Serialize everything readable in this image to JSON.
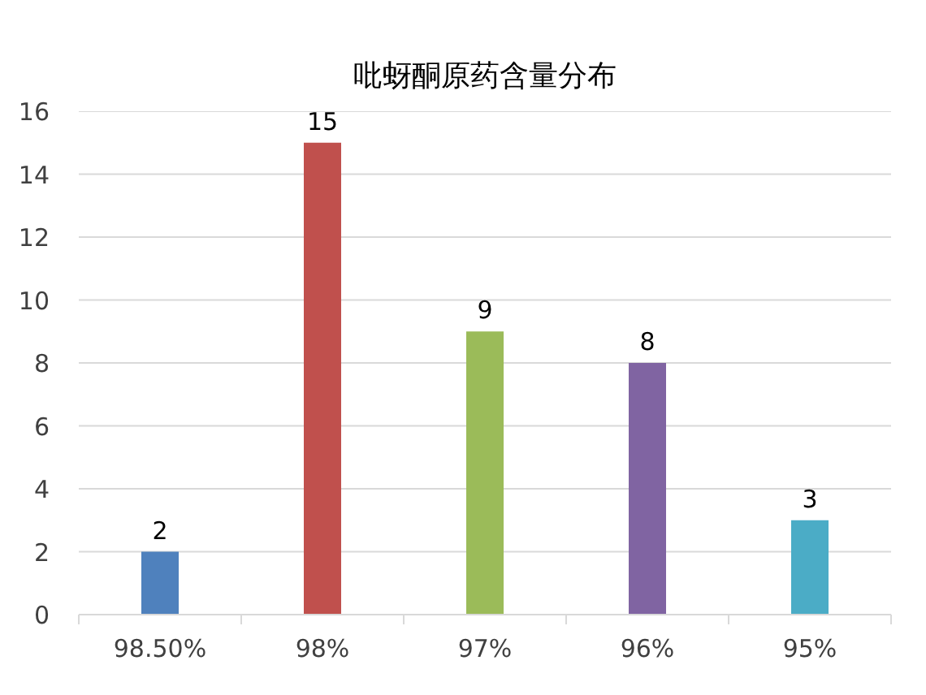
{
  "chart_data": {
    "type": "bar",
    "title": "吡蚜酮原药含量分布",
    "categories": [
      "98.50%",
      "98%",
      "97%",
      "96%",
      "95%"
    ],
    "values": [
      2,
      15,
      9,
      8,
      3
    ],
    "colors": [
      "#4f81bd",
      "#c0504d",
      "#9bbb59",
      "#8064a2",
      "#4bacc6"
    ],
    "ylim": [
      0,
      16
    ],
    "yticks": [
      0,
      2,
      4,
      6,
      8,
      10,
      12,
      14,
      16
    ],
    "grid": "y",
    "data_labels": true
  }
}
